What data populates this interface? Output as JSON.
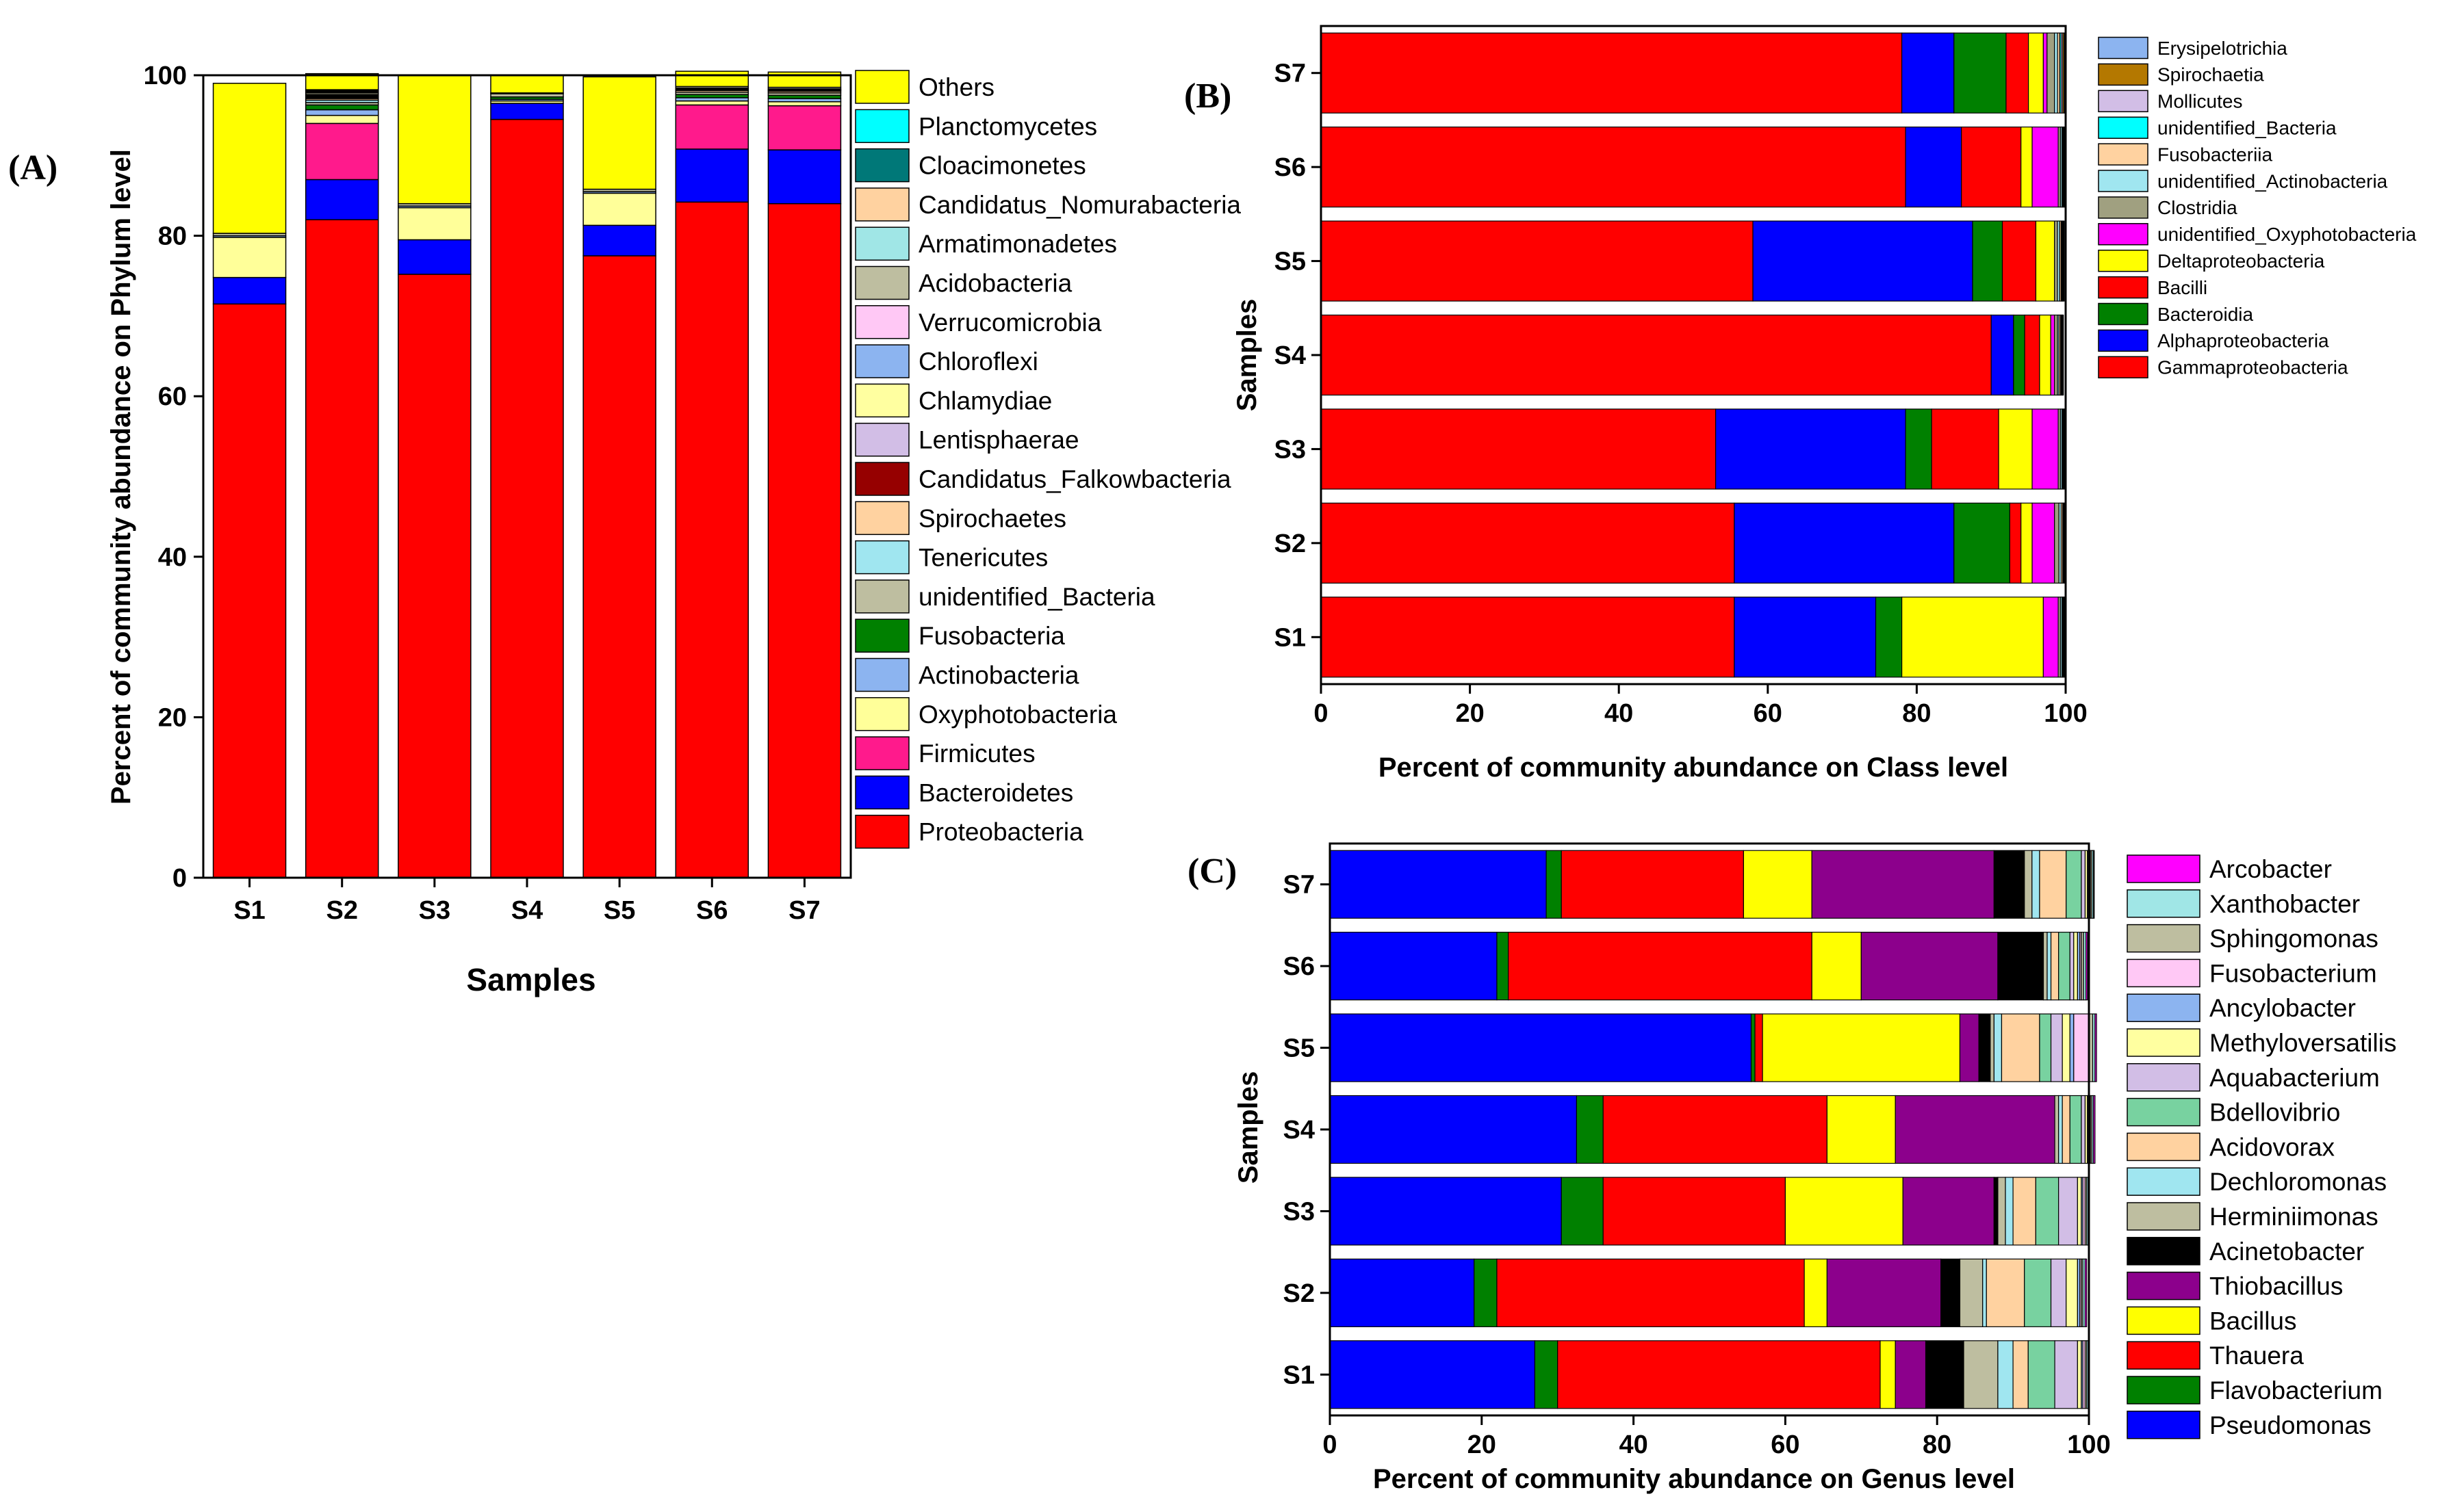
{
  "chart_data": [
    {
      "panel_label": "(A)",
      "type": "bar",
      "orientation": "vertical",
      "stacked": true,
      "xlabel": "Samples",
      "ylabel": "Percent of community abundance on Phylum level",
      "ylim": [
        0,
        100
      ],
      "yticks": [
        0,
        20,
        40,
        60,
        80,
        100
      ],
      "categories": [
        "S1",
        "S2",
        "S3",
        "S4",
        "S5",
        "S6",
        "S7"
      ],
      "legend": "right",
      "series": [
        {
          "name": "Proteobacteria",
          "color": "#ff0000",
          "values": [
            71.5,
            82,
            75.2,
            94.5,
            77.5,
            84.2,
            84
          ]
        },
        {
          "name": "Bacteroidetes",
          "color": "#0000ff",
          "values": [
            3.3,
            5,
            4.3,
            2,
            3.8,
            6.6,
            6.7
          ]
        },
        {
          "name": "Firmicutes",
          "color": "#ff1a8c",
          "values": [
            0,
            7,
            0,
            0,
            0,
            5.5,
            5.5
          ]
        },
        {
          "name": "Oxyphotobacteria",
          "color": "#ffff99",
          "values": [
            5,
            1,
            4,
            0.3,
            4,
            0.5,
            0.5
          ]
        },
        {
          "name": "Actinobacteria",
          "color": "#8cb4f0",
          "values": [
            0.2,
            0.7,
            0.2,
            0.2,
            0.2,
            0.4,
            0.4
          ]
        },
        {
          "name": "Fusobacteria",
          "color": "#008000",
          "values": [
            0,
            0.6,
            0,
            0.3,
            0,
            0.4,
            0.4
          ]
        },
        {
          "name": "unidentified_Bacteria",
          "color": "#bebea0",
          "values": [
            0.3,
            0.3,
            0.3,
            0.4,
            0.3,
            0.3,
            0.3
          ]
        },
        {
          "name": "Tenericutes",
          "color": "#a0e6f0",
          "values": [
            0,
            0.3,
            0,
            0,
            0,
            0,
            0
          ]
        },
        {
          "name": "Spirochaetes",
          "color": "#ffd2a0",
          "values": [
            0,
            0.2,
            0,
            0,
            0,
            0.2,
            0.2
          ]
        },
        {
          "name": "Candidatus_Falkowbacteria",
          "color": "#960000",
          "values": [
            0,
            0.1,
            0,
            0.1,
            0,
            0.1,
            0.1
          ]
        },
        {
          "name": "Lentisphaerae",
          "color": "#d2bee6",
          "values": [
            0,
            0.1,
            0,
            0,
            0,
            0.1,
            0.1
          ]
        },
        {
          "name": "Chlamydiae",
          "color": "#ffffa0",
          "values": [
            0,
            0.1,
            0,
            0,
            0,
            0.1,
            0.1
          ]
        },
        {
          "name": "Chloroflexi",
          "color": "#8cb4f0",
          "values": [
            0,
            0.1,
            0,
            0,
            0,
            0,
            0
          ]
        },
        {
          "name": "Verrucomicrobia",
          "color": "#ffc8f5",
          "values": [
            0,
            0.1,
            0,
            0,
            0,
            0,
            0
          ]
        },
        {
          "name": "Acidobacteria",
          "color": "#bebea0",
          "values": [
            0,
            0.2,
            0,
            0,
            0,
            0.2,
            0.2
          ]
        },
        {
          "name": "Armatimonadetes",
          "color": "#a0e6e6",
          "values": [
            0,
            0.1,
            0,
            0,
            0,
            0,
            0
          ]
        },
        {
          "name": "Candidatus_Nomurabacteria",
          "color": "#ffd2a0",
          "values": [
            0,
            0.1,
            0,
            0,
            0,
            0,
            0
          ]
        },
        {
          "name": "Cloacimonetes",
          "color": "#007878",
          "values": [
            0,
            0.1,
            0,
            0,
            0,
            0,
            0
          ]
        },
        {
          "name": "Planctomycetes",
          "color": "#00ffff",
          "values": [
            0,
            0.1,
            0,
            0,
            0,
            0,
            0
          ]
        },
        {
          "name": "Others",
          "color": "#ffff00",
          "values": [
            18.7,
            2,
            16,
            2.2,
            14,
            1.9,
            1.9
          ]
        }
      ]
    },
    {
      "panel_label": "(B)",
      "type": "bar",
      "orientation": "horizontal",
      "stacked": true,
      "xlabel": "Percent of community abundance on Class level",
      "ylabel": "Samples",
      "xlim": [
        0,
        100
      ],
      "xticks": [
        0,
        20,
        40,
        60,
        80,
        100
      ],
      "categories": [
        "S1",
        "S2",
        "S3",
        "S4",
        "S5",
        "S6",
        "S7"
      ],
      "legend": "right",
      "series": [
        {
          "name": "Gammaproteobacteria",
          "color": "#ff0000",
          "values": [
            55.5,
            55.5,
            53,
            90,
            58,
            78.5,
            78
          ]
        },
        {
          "name": "Alphaproteobacteria",
          "color": "#0000ff",
          "values": [
            19,
            29.5,
            25.5,
            3,
            29.5,
            7.5,
            7
          ]
        },
        {
          "name": "Bacteroidia",
          "color": "#008000",
          "values": [
            3.5,
            7.5,
            3.5,
            1.5,
            4,
            0,
            7
          ]
        },
        {
          "name": "Bacilli",
          "color": "#ff0000",
          "values": [
            0,
            1.5,
            9,
            2,
            4.5,
            8,
            3
          ]
        },
        {
          "name": "Deltaproteobacteria",
          "color": "#ffff00",
          "values": [
            19,
            1.5,
            4.5,
            1.5,
            2.5,
            1.5,
            2
          ]
        },
        {
          "name": "unidentified_Oxyphotobacteria",
          "color": "#ff00ff",
          "values": [
            2,
            3,
            3.5,
            0.5,
            0,
            3.5,
            0.5
          ]
        },
        {
          "name": "Clostridia",
          "color": "#a0a080",
          "values": [
            0.3,
            0.6,
            0.3,
            0.4,
            0.4,
            0.3,
            1
          ]
        },
        {
          "name": "unidentified_Actinobacteria",
          "color": "#a0e6f0",
          "values": [
            0.2,
            0.3,
            0.2,
            0.2,
            0.3,
            0.2,
            0.4
          ]
        },
        {
          "name": "Fusobacteriia",
          "color": "#ffd2a0",
          "values": [
            0.1,
            0.2,
            0.1,
            0.2,
            0.2,
            0.1,
            0.3
          ]
        },
        {
          "name": "unidentified_Bacteria",
          "color": "#00ffff",
          "values": [
            0.1,
            0.1,
            0.1,
            0.1,
            0.1,
            0.1,
            0.2
          ]
        },
        {
          "name": "Mollicutes",
          "color": "#d2bee6",
          "values": [
            0.1,
            0.1,
            0.1,
            0.1,
            0.1,
            0.1,
            0.2
          ]
        },
        {
          "name": "Spirochaetia",
          "color": "#b47800",
          "values": [
            0.1,
            0.1,
            0.1,
            0.1,
            0.1,
            0.1,
            0.2
          ]
        },
        {
          "name": "Erysipelotrichia",
          "color": "#8cb4f0",
          "values": [
            0.1,
            0.1,
            0.1,
            0.1,
            0.1,
            0.1,
            0.2
          ]
        }
      ]
    },
    {
      "panel_label": "(C)",
      "type": "bar",
      "orientation": "horizontal",
      "stacked": true,
      "xlabel": "Percent of community abundance on Genus level",
      "ylabel": "Samples",
      "xlim": [
        0,
        100
      ],
      "xticks": [
        0,
        20,
        40,
        60,
        80,
        100
      ],
      "categories": [
        "S1",
        "S2",
        "S3",
        "S4",
        "S5",
        "S6",
        "S7"
      ],
      "legend": "right",
      "series": [
        {
          "name": "Pseudomonas",
          "color": "#0000ff",
          "values": [
            27,
            19,
            30.5,
            32.5,
            55.5,
            22,
            28.5
          ]
        },
        {
          "name": "Flavobacterium",
          "color": "#008000",
          "values": [
            3,
            3,
            5.5,
            3.5,
            0.5,
            1.5,
            2
          ]
        },
        {
          "name": "Thauera",
          "color": "#ff0000",
          "values": [
            42.5,
            40.5,
            24,
            29.5,
            1,
            40,
            24
          ]
        },
        {
          "name": "Bacillus",
          "color": "#ffff00",
          "values": [
            2,
            3,
            15.5,
            9,
            26,
            6.5,
            9
          ]
        },
        {
          "name": "Thiobacillus",
          "color": "#8c008c",
          "values": [
            4,
            15,
            12,
            21,
            2.5,
            18,
            24
          ]
        },
        {
          "name": "Acinetobacter",
          "color": "#000000",
          "values": [
            5,
            2.5,
            0.5,
            0,
            1.5,
            6,
            4
          ]
        },
        {
          "name": "Herminiimonas",
          "color": "#bebea0",
          "values": [
            4.5,
            3,
            1,
            0.5,
            0.5,
            0.5,
            1
          ]
        },
        {
          "name": "Dechloromonas",
          "color": "#a0e6f0",
          "values": [
            2,
            0.5,
            1,
            0.5,
            1,
            0.5,
            1
          ]
        },
        {
          "name": "Acidovorax",
          "color": "#ffd2a0",
          "values": [
            2,
            5,
            3,
            1,
            5,
            1,
            3.5
          ]
        },
        {
          "name": "Bdellovibrio",
          "color": "#78d2a0",
          "values": [
            3.5,
            3.5,
            3,
            1.5,
            1.5,
            1.5,
            2
          ]
        },
        {
          "name": "Aquabacterium",
          "color": "#d2bee6",
          "values": [
            3,
            2,
            2.5,
            0.5,
            1.5,
            0.5,
            0.5
          ]
        },
        {
          "name": "Methyloversatilis",
          "color": "#ffffa0",
          "values": [
            0.5,
            1.5,
            0.5,
            0.3,
            1,
            0.5,
            0.3
          ]
        },
        {
          "name": "Ancylobacter",
          "color": "#8cb4f0",
          "values": [
            0.2,
            0.3,
            0.2,
            0.2,
            0.5,
            0.3,
            0.2
          ]
        },
        {
          "name": "Fusobacterium",
          "color": "#ffc8f5",
          "values": [
            0.3,
            0.2,
            0.3,
            0.2,
            2,
            0.2,
            0.2
          ]
        },
        {
          "name": "Sphingomonas",
          "color": "#bebea0",
          "values": [
            0.2,
            0.2,
            0.2,
            0.2,
            0.5,
            0.3,
            0.2
          ]
        },
        {
          "name": "Xanthobacter",
          "color": "#a0e6e6",
          "values": [
            0.2,
            0.3,
            0.2,
            0.2,
            0.3,
            0.3,
            0.2
          ]
        },
        {
          "name": "Arcobacter",
          "color": "#ff00ff",
          "values": [
            0.1,
            0.2,
            0.1,
            0.2,
            0.2,
            0.2,
            0.1
          ]
        }
      ]
    }
  ]
}
